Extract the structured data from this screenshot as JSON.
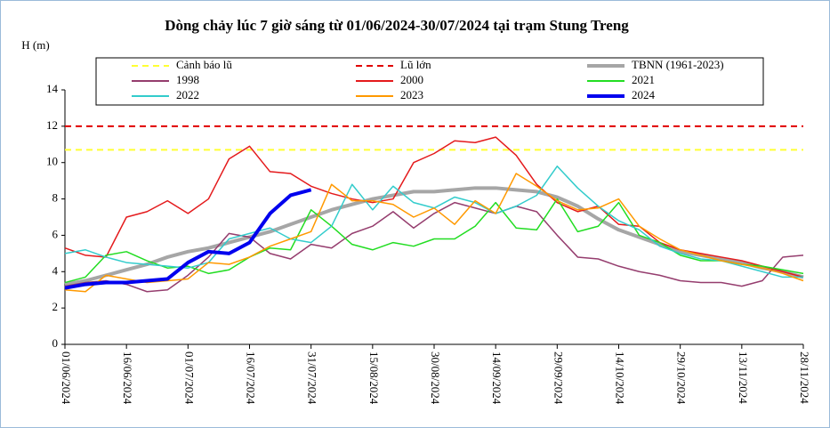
{
  "chart_data": {
    "type": "line",
    "title": "Dòng chảy lúc 7 giờ sáng từ 01/06/2024-30/07/2024 tại trạm Stung Treng",
    "y_label": "H (m)",
    "x": [
      "01/06/2024",
      "06/06/2024",
      "11/06/2024",
      "16/06/2024",
      "21/06/2024",
      "26/06/2024",
      "01/07/2024",
      "06/07/2024",
      "11/07/2024",
      "16/07/2024",
      "21/07/2024",
      "26/07/2024",
      "31/07/2024",
      "05/08/2024",
      "10/08/2024",
      "15/08/2024",
      "20/08/2024",
      "25/08/2024",
      "30/08/2024",
      "04/09/2024",
      "09/09/2024",
      "14/09/2024",
      "19/09/2024",
      "24/09/2024",
      "29/09/2024",
      "04/10/2024",
      "09/10/2024",
      "14/10/2024",
      "19/10/2024",
      "24/10/2024",
      "29/10/2024",
      "03/11/2024",
      "08/11/2024",
      "13/11/2024",
      "18/11/2024",
      "23/11/2024",
      "28/11/2024"
    ],
    "xticks": [
      "01/06/2024",
      "16/06/2024",
      "01/07/2024",
      "16/07/2024",
      "31/07/2024",
      "15/08/2024",
      "30/08/2024",
      "14/09/2024",
      "29/09/2024",
      "14/10/2024",
      "29/10/2024",
      "13/11/2024",
      "28/11/2024"
    ],
    "ylim": [
      0,
      14
    ],
    "yticks": [
      0,
      2,
      4,
      6,
      8,
      10,
      12,
      14
    ],
    "reference_lines": [
      {
        "name": "Cảnh báo lũ",
        "value": 10.7,
        "color": "#ffff33"
      },
      {
        "name": "Lũ lớn",
        "value": 12,
        "color": "#e00000"
      }
    ],
    "series": [
      {
        "name": "TBNN (1961-2023)",
        "color": "#a6a6a6",
        "width": 4,
        "values": [
          3.3,
          3.5,
          3.8,
          4.1,
          4.4,
          4.8,
          5.1,
          5.3,
          5.6,
          5.9,
          6.2,
          6.6,
          7.0,
          7.4,
          7.7,
          8.0,
          8.2,
          8.4,
          8.4,
          8.5,
          8.6,
          8.6,
          8.5,
          8.4,
          8.1,
          7.6,
          6.9,
          6.3,
          5.9,
          5.5,
          5.1,
          4.9,
          4.7,
          4.5,
          4.2,
          4.0,
          3.7
        ]
      },
      {
        "name": "1998",
        "color": "#953d6e",
        "width": 1.5,
        "values": [
          3.2,
          3.4,
          3.5,
          3.3,
          2.9,
          3.0,
          3.8,
          4.8,
          6.1,
          5.9,
          5.0,
          4.7,
          5.5,
          5.3,
          6.1,
          6.5,
          7.3,
          6.4,
          7.2,
          7.8,
          7.5,
          7.2,
          7.6,
          7.3,
          6.0,
          4.8,
          4.7,
          4.3,
          4.0,
          3.8,
          3.5,
          3.4,
          3.4,
          3.2,
          3.5,
          4.8,
          4.9
        ]
      },
      {
        "name": "2000",
        "color": "#e41a1c",
        "width": 1.5,
        "values": [
          5.3,
          4.9,
          4.8,
          7.0,
          7.3,
          7.9,
          7.2,
          8.0,
          10.2,
          10.9,
          9.5,
          9.4,
          8.7,
          8.3,
          8.0,
          7.8,
          8.0,
          10.0,
          10.5,
          11.2,
          11.1,
          11.4,
          10.4,
          8.8,
          7.8,
          7.3,
          7.6,
          6.6,
          6.5,
          5.6,
          5.2,
          5.0,
          4.8,
          4.6,
          4.3,
          4.0,
          3.7
        ]
      },
      {
        "name": "2021",
        "color": "#22dd22",
        "width": 1.5,
        "values": [
          3.4,
          3.7,
          4.9,
          5.1,
          4.6,
          4.2,
          4.3,
          3.9,
          4.1,
          4.8,
          5.3,
          5.2,
          7.4,
          6.5,
          5.5,
          5.2,
          5.6,
          5.4,
          5.8,
          5.8,
          6.5,
          7.8,
          6.4,
          6.3,
          8.0,
          6.2,
          6.5,
          7.8,
          6.0,
          5.6,
          4.9,
          4.6,
          4.6,
          4.4,
          4.3,
          4.1,
          3.9
        ]
      },
      {
        "name": "2022",
        "color": "#33cccc",
        "width": 1.5,
        "values": [
          5.0,
          5.2,
          4.8,
          4.5,
          4.4,
          4.3,
          4.2,
          4.5,
          5.8,
          6.1,
          6.4,
          5.8,
          5.6,
          6.5,
          8.8,
          7.4,
          8.7,
          7.8,
          7.5,
          8.1,
          7.8,
          7.2,
          7.6,
          8.2,
          9.8,
          8.6,
          7.6,
          6.8,
          6.3,
          5.4,
          5.0,
          4.7,
          4.6,
          4.3,
          4.0,
          3.7,
          3.7
        ]
      },
      {
        "name": "2023",
        "color": "#ff9900",
        "width": 1.5,
        "values": [
          3.0,
          2.9,
          3.8,
          3.6,
          3.4,
          3.5,
          3.6,
          4.5,
          4.4,
          4.8,
          5.4,
          5.8,
          6.2,
          8.8,
          7.9,
          7.9,
          7.7,
          7.0,
          7.5,
          6.6,
          7.9,
          7.2,
          9.4,
          8.7,
          7.9,
          7.4,
          7.5,
          8.0,
          6.5,
          5.8,
          5.2,
          4.9,
          4.6,
          4.4,
          4.2,
          3.9,
          3.5
        ]
      },
      {
        "name": "2024",
        "color": "#0000ee",
        "width": 4,
        "values": [
          3.1,
          3.3,
          3.4,
          3.4,
          3.5,
          3.6,
          4.5,
          5.1,
          5.0,
          5.6,
          7.2,
          8.2,
          8.5,
          null,
          null,
          null,
          null,
          null,
          null,
          null,
          null,
          null,
          null,
          null,
          null,
          null,
          null,
          null,
          null,
          null,
          null,
          null,
          null,
          null,
          null,
          null,
          null
        ]
      }
    ]
  }
}
